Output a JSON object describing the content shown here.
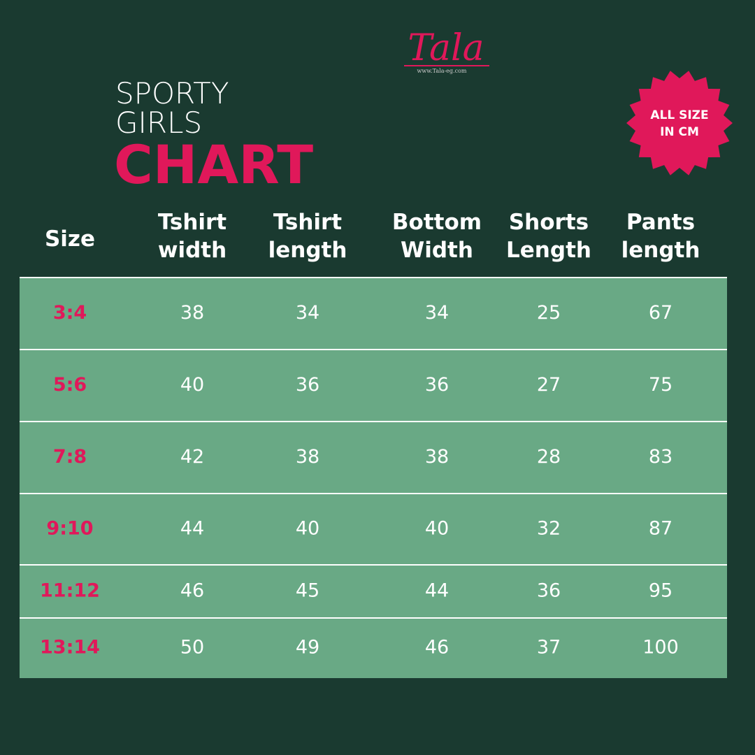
{
  "logo": {
    "name": "Tala",
    "url": "www.Tala-eg.com"
  },
  "title": {
    "line1": "SPORTY",
    "line2": "GIRLS",
    "line3": "CHART"
  },
  "badge": {
    "lines": [
      "ALL SIZE",
      "IN CM"
    ]
  },
  "table": {
    "columns": [
      [
        "Size"
      ],
      [
        "Tshirt",
        "width"
      ],
      [
        "Tshirt",
        "length"
      ],
      [
        "Bottom",
        "Width"
      ],
      [
        "Shorts",
        "Length"
      ],
      [
        "Pants",
        "length"
      ]
    ],
    "rows": [
      [
        "3:4",
        "38",
        "34",
        "34",
        "25",
        "67"
      ],
      [
        "5:6",
        "40",
        "36",
        "36",
        "27",
        "75"
      ],
      [
        "7:8",
        "42",
        "38",
        "38",
        "28",
        "83"
      ],
      [
        "9:10",
        "44",
        "40",
        "40",
        "32",
        "87"
      ],
      [
        "11:12",
        "46",
        "45",
        "44",
        "36",
        "95"
      ],
      [
        "13:14",
        "50",
        "49",
        "46",
        "37",
        "100"
      ]
    ]
  }
}
